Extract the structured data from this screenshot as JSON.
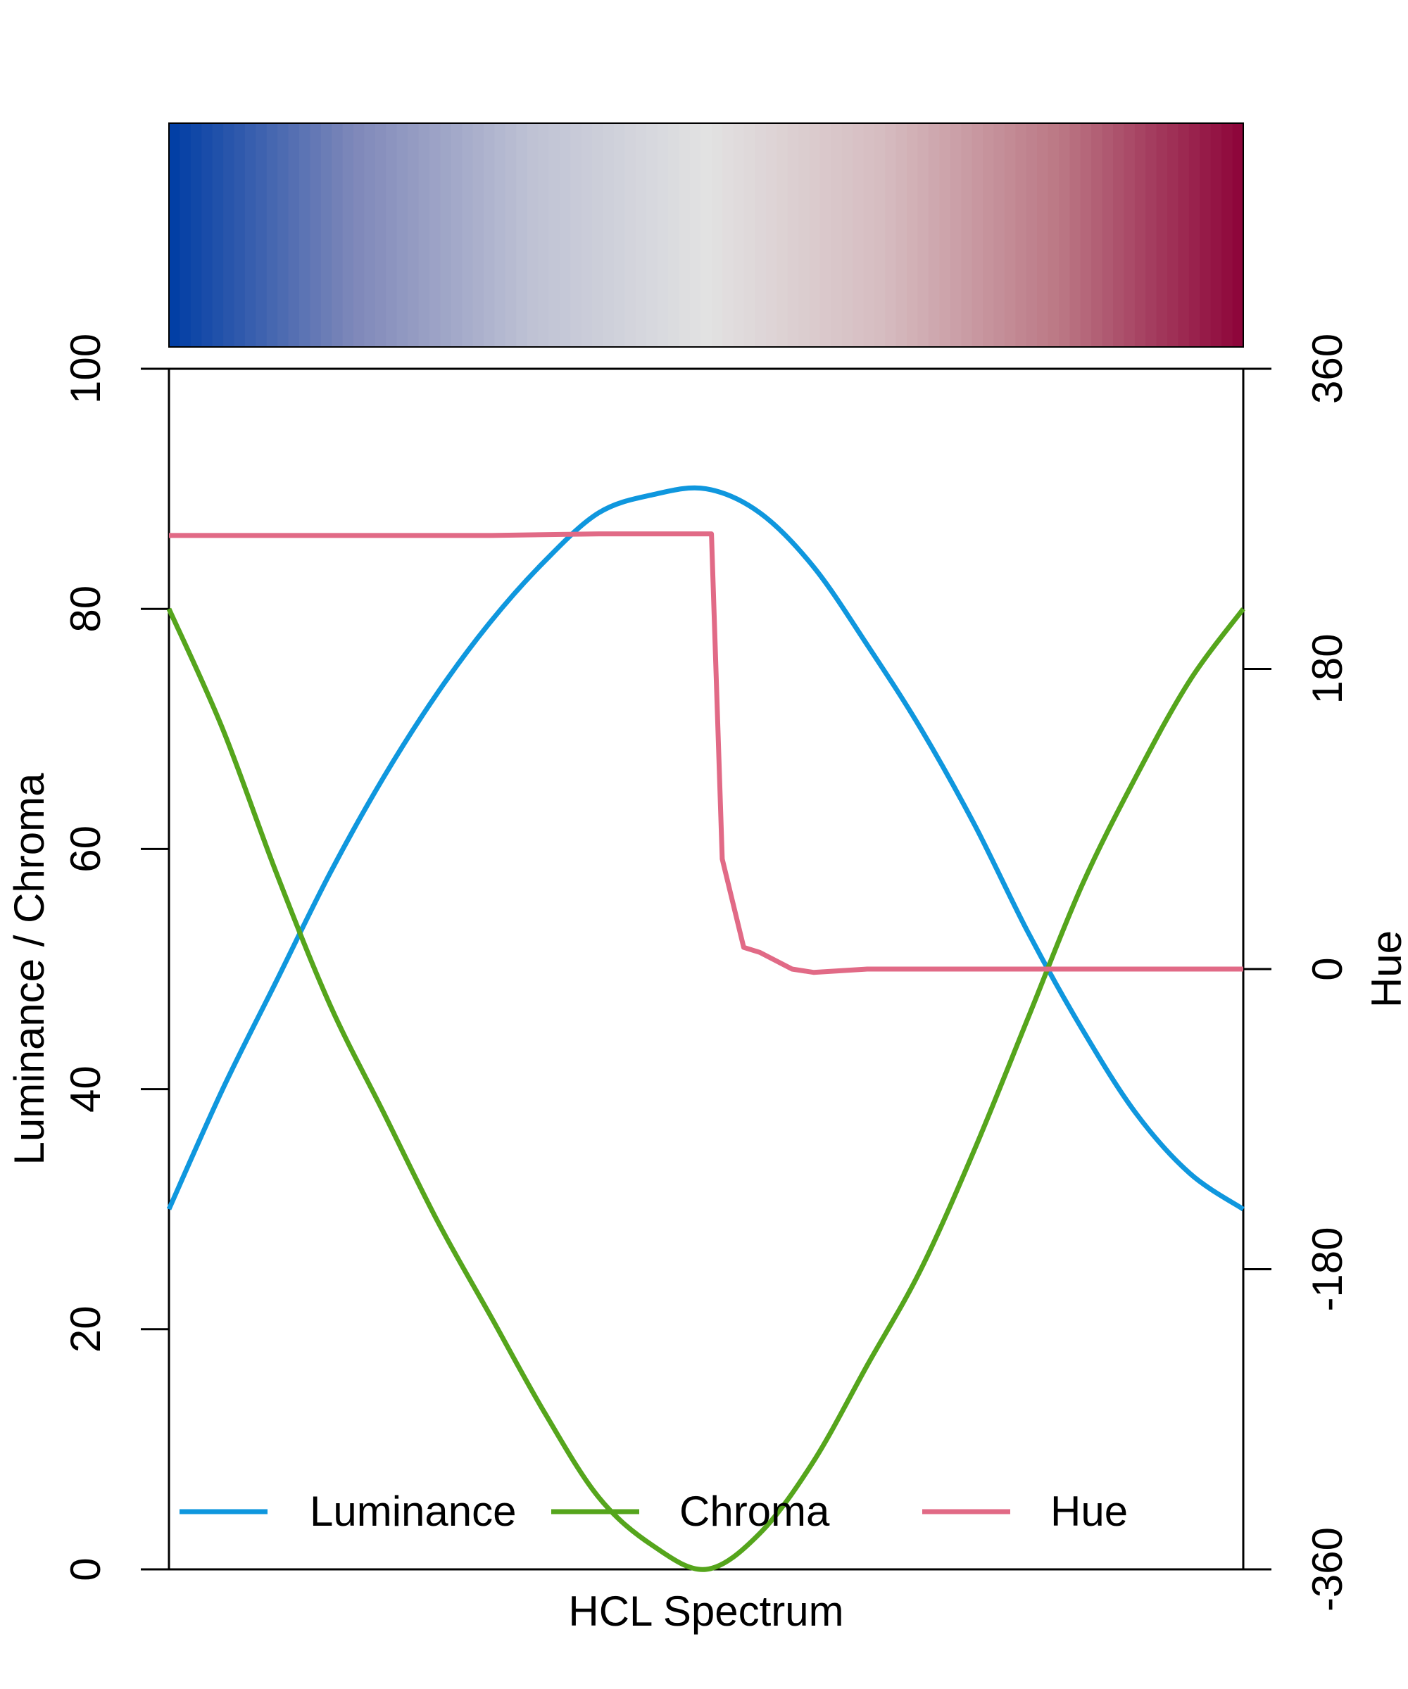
{
  "chart_data": {
    "type": "line",
    "title": "",
    "xlabel": "HCL Spectrum",
    "ylabel_left": "Luminance / Chroma",
    "ylabel_right": "Hue",
    "ylim_left": [
      0,
      100
    ],
    "ylim_right": [
      -360,
      360
    ],
    "yticks_left": [
      "0",
      "20",
      "40",
      "60",
      "80",
      "100"
    ],
    "yticks_right": [
      "-360",
      "-180",
      "0",
      "180",
      "360"
    ],
    "x": [
      0.0,
      0.05,
      0.1,
      0.15,
      0.2,
      0.25,
      0.3,
      0.35,
      0.4,
      0.45,
      0.5,
      0.55,
      0.6,
      0.65,
      0.7,
      0.75,
      0.8,
      0.85,
      0.9,
      0.95,
      1.0
    ],
    "series": [
      {
        "name": "Luminance",
        "axis": "left",
        "color": "#0F97DE",
        "x": [
          0.0,
          0.05,
          0.1,
          0.15,
          0.2,
          0.25,
          0.3,
          0.35,
          0.4,
          0.45,
          0.5,
          0.55,
          0.6,
          0.65,
          0.7,
          0.75,
          0.8,
          0.85,
          0.9,
          0.95,
          1.0
        ],
        "values": [
          30,
          40,
          49,
          58,
          66,
          73,
          79,
          84,
          88,
          89.5,
          90,
          88,
          83.5,
          77,
          70,
          62,
          53,
          45,
          38,
          33,
          30
        ]
      },
      {
        "name": "Chroma",
        "axis": "left",
        "color": "#55A51C",
        "x": [
          0.0,
          0.05,
          0.1,
          0.15,
          0.2,
          0.25,
          0.3,
          0.35,
          0.4,
          0.45,
          0.5,
          0.55,
          0.6,
          0.65,
          0.7,
          0.75,
          0.8,
          0.85,
          0.9,
          0.95,
          1.0
        ],
        "values": [
          80,
          70,
          58,
          47,
          38,
          29,
          21,
          13,
          6,
          2,
          0,
          3,
          9,
          17,
          25,
          35,
          46,
          57,
          66,
          74,
          80
        ]
      },
      {
        "name": "Hue",
        "axis": "right",
        "color": "#E16A86",
        "x": [
          0.0,
          0.1,
          0.2,
          0.3,
          0.4,
          0.45,
          0.505,
          0.515,
          0.535,
          0.55,
          0.58,
          0.6,
          0.65,
          0.7,
          0.8,
          0.9,
          1.0
        ],
        "values": [
          260,
          260,
          260,
          260,
          261,
          261,
          261,
          66,
          13,
          10,
          0,
          -2,
          0,
          0,
          0,
          0,
          0
        ]
      }
    ],
    "legend": {
      "placement": "bottom",
      "entries": [
        "Luminance",
        "Chroma",
        "Hue"
      ]
    },
    "colorbar": {
      "stops": [
        "#023FA5",
        "#7D87B9",
        "#BEC1D4",
        "#E2E2E2",
        "#D6BCC0",
        "#BB7784",
        "#8E063B"
      ]
    },
    "grid": false
  }
}
